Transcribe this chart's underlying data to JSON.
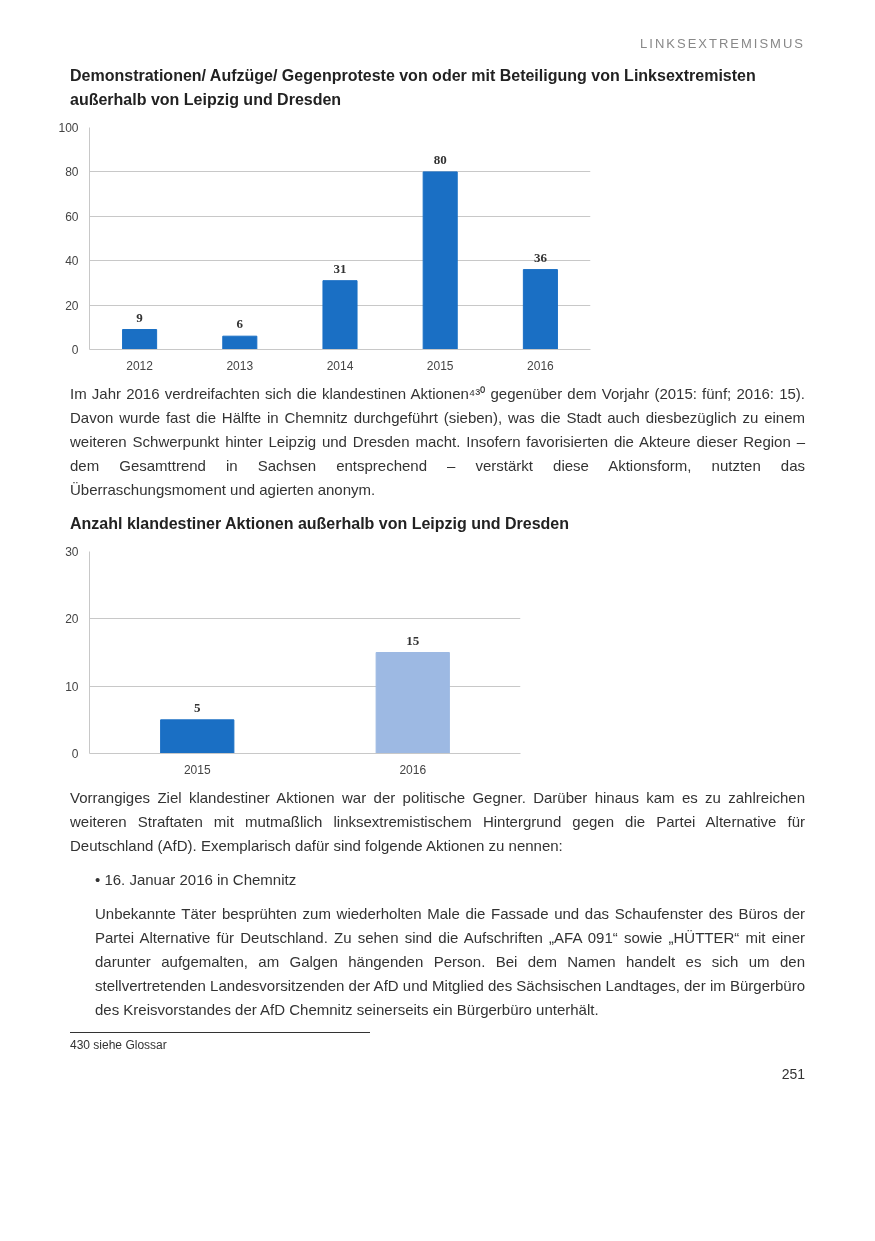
{
  "chart_data": [
    {
      "type": "bar",
      "title": "Demonstrationen/ Aufzüge/ Gegenproteste von oder mit Beteiligung von Linksextremisten außerhalb von Leipzig und Dresden",
      "categories": [
        "2012",
        "2013",
        "2014",
        "2015",
        "2016"
      ],
      "values": [
        9,
        6,
        31,
        80,
        36
      ],
      "color": "#1a6fc4",
      "ylim": [
        0,
        100
      ],
      "yticks": [
        0,
        20,
        40,
        60,
        80,
        100
      ],
      "grid": "y",
      "data_labels": true,
      "annotations": [
        "LINKSEXTREMISMUS",
        "Im Jahr 2016 verdreifachten sich die klandestinen Aktionen⁴³⁰ gegenüber dem Vorjahr (2015: fünf; 2016: 15). Davon wurde fast die Hälfte in Chemnitz durchgeführt (sieben), was die Stadt auch diesbezüglich zu einem weiteren Schwerpunkt hinter Leipzig und Dresden macht. Insofern favorisierten die Akteure dieser Region – dem Gesamttrend in Sachsen entsprechend – verstärkt diese Aktionsform, nutzten das Überraschungsmoment und agierten anonym."
      ]
    },
    {
      "type": "bar",
      "title": "Anzahl klandestiner Aktionen außerhalb von Leipzig und Dresden",
      "categories": [
        "2015",
        "2016"
      ],
      "values": [
        5,
        15
      ],
      "colors": [
        "#1a6fc4",
        "#9db9e3"
      ],
      "ylim": [
        0,
        30
      ],
      "yticks": [
        0,
        10,
        20,
        30
      ],
      "grid": "y",
      "data_labels": true,
      "annotations": [
        "Vorrangiges Ziel klandestiner Aktionen war der politische Gegner. Darüber hinaus kam es zu zahlreichen weiteren Straftaten mit mutmaßlich linksextremistischem Hintergrund gegen die Partei Alternative für Deutschland (AfD). Exemplarisch dafür sind folgende Aktionen zu nennen:",
        "• 16. Januar 2016 in Chemnitz",
        "Unbekannte Täter besprühten zum wiederholten Male die Fassade und das Schaufenster des Büros der Partei Alternative für Deutschland. Zu sehen sind die Aufschriften „AFA 091“ sowie „HÜTTER“ mit einer darunter aufgemalten, am Galgen hängenden Person. Bei dem Namen handelt es sich um den stellvertretenden Landesvorsitzenden der AfD und Mitglied des Sächsischen Landtages, der im Bürgerbüro des Kreisvorstandes der AfD Chemnitz seinerseits ein Bürgerbüro unterhält.",
        "430    siehe Glossar",
        "251"
      ]
    }
  ]
}
